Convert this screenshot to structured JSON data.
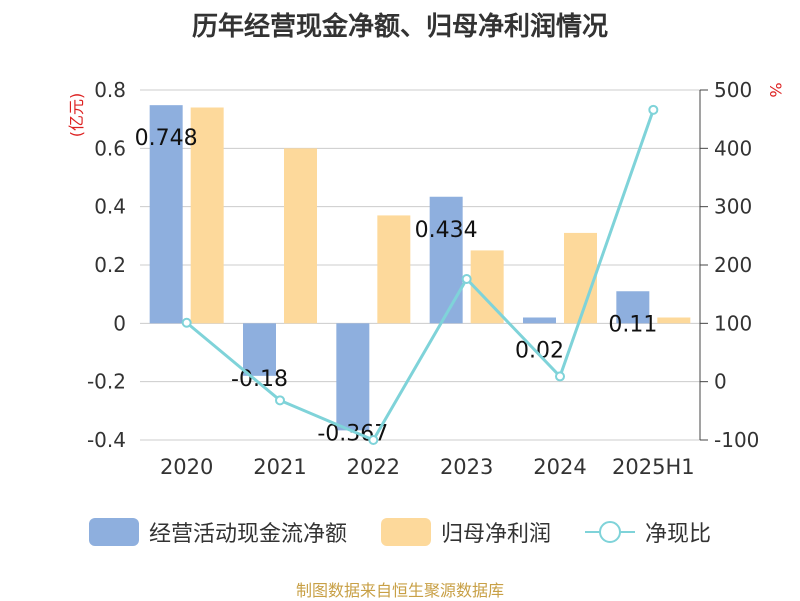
{
  "title": "历年经营现金净额、归母净利润情况",
  "source": "制图数据来自恒生聚源数据库",
  "chart_data": {
    "type": "bar",
    "categories": [
      "2020",
      "2021",
      "2022",
      "2023",
      "2024",
      "2025H1"
    ],
    "series": [
      {
        "name": "经营活动现金流净额",
        "axis": "left",
        "type": "bar",
        "color": "#8eafde",
        "values": [
          0.748,
          -0.18,
          -0.367,
          0.434,
          0.02,
          0.11
        ],
        "labels": [
          "0.748",
          "-0.18",
          "-0.367",
          "0.434",
          "0.02",
          "0.11"
        ]
      },
      {
        "name": "归母净利润",
        "axis": "left",
        "type": "bar",
        "color": "#fdd99b",
        "values": [
          0.74,
          0.6,
          0.37,
          0.25,
          0.31,
          0.02
        ]
      },
      {
        "name": "净现比",
        "axis": "right",
        "type": "line",
        "color": "#7fd3d9",
        "values": [
          101,
          -32,
          -100,
          176,
          9,
          466
        ]
      }
    ],
    "ylabel_left": "(亿元)",
    "ylabel_right": "%",
    "ylim_left": [
      -0.4,
      0.8
    ],
    "ylim_right": [
      -100,
      500
    ],
    "yticks_left": [
      "0.8",
      "0.6",
      "0.4",
      "0.2",
      "0",
      "-0.2",
      "-0.4"
    ],
    "yticks_right": [
      "500",
      "400",
      "300",
      "200",
      "100",
      "0",
      "-100"
    ],
    "grid": true,
    "legend": "bottom"
  }
}
